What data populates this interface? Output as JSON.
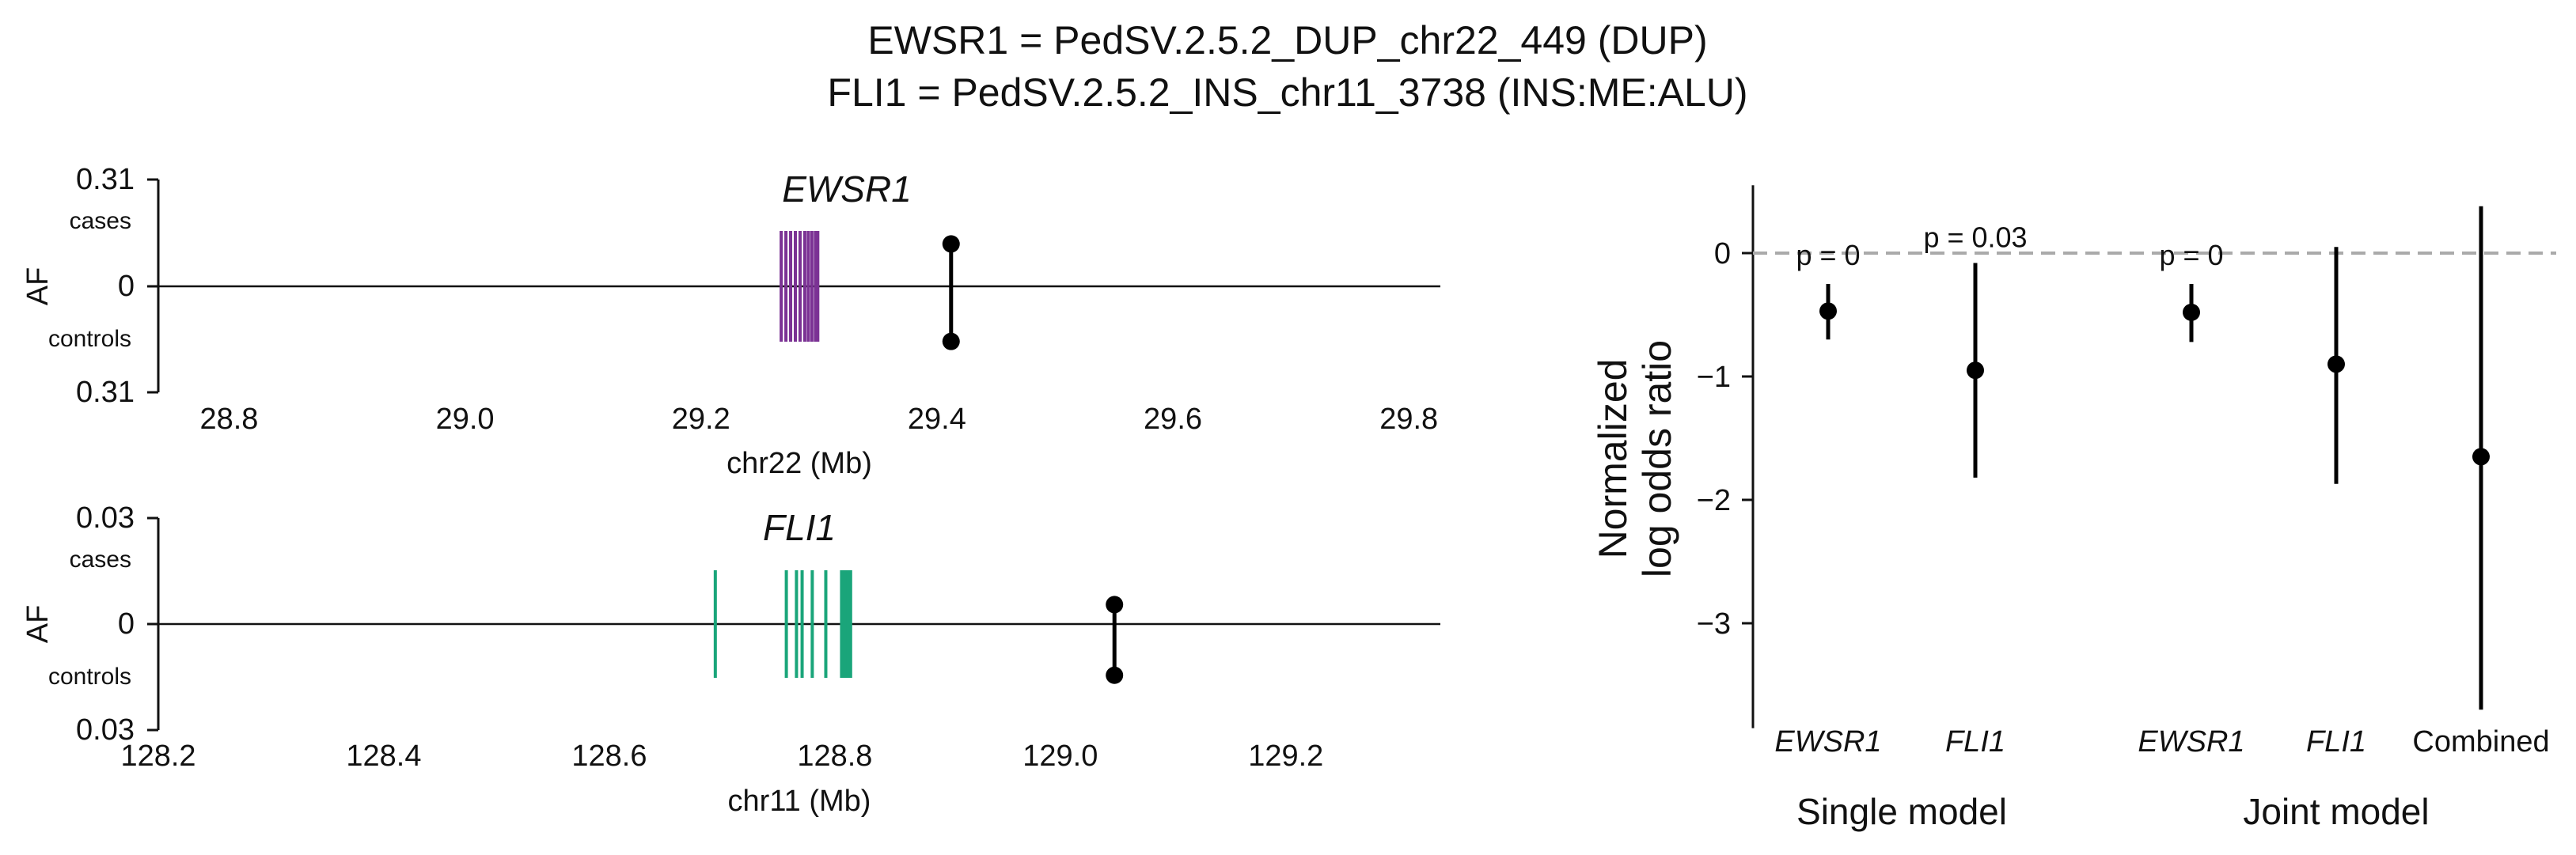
{
  "title_line1": "EWSR1 = PedSV.2.5.2_DUP_chr22_449 (DUP)",
  "title_line2": "FLI1 = PedSV.2.5.2_INS_chr11_3738 (INS:ME:ALU)",
  "colors": {
    "ewsr1_exon": "#7b3294",
    "fli1_exon": "#1aa57a",
    "points": "#000000",
    "reference_line": "#aaaaaa"
  },
  "chart_data": [
    {
      "type": "lollipop",
      "gene": "EWSR1",
      "ylabel": "AF",
      "xlabel": "chr22 (Mb)",
      "y_top_label": "cases",
      "y_bottom_label": "controls",
      "ymax_tick_label": "0.31",
      "ymin_tick_label": "0.31",
      "zero_tick_label": "0",
      "ylim": [
        -0.31,
        0.31
      ],
      "xlim": [
        28.74,
        29.82
      ],
      "x_ticks": [
        "28.8",
        "29.0",
        "29.2",
        "29.4",
        "29.6",
        "29.8"
      ],
      "exons_mb": [
        29.268,
        29.272,
        29.276,
        29.28,
        29.284,
        29.288,
        29.291,
        29.294,
        29.297,
        29.299
      ],
      "exon_color_key": "ewsr1_exon",
      "variant": {
        "position_mb": 29.412,
        "af_cases": 0.123,
        "af_controls": 0.16
      }
    },
    {
      "type": "lollipop",
      "gene": "FLI1",
      "ylabel": "AF",
      "xlabel": "chr11 (Mb)",
      "y_top_label": "cases",
      "y_bottom_label": "controls",
      "ymax_tick_label": "0.03",
      "ymin_tick_label": "0.03",
      "zero_tick_label": "0",
      "ylim": [
        -0.03,
        0.03
      ],
      "xlim": [
        128.2,
        129.33
      ],
      "x_ticks": [
        "128.2",
        "128.4",
        "128.6",
        "128.8",
        "129.0",
        "129.2"
      ],
      "exons_mb": [
        128.694,
        128.757,
        128.766,
        128.771,
        128.78,
        128.792,
        128.806,
        128.808,
        128.81,
        128.812,
        128.814
      ],
      "exon_color_key": "fli1_exon",
      "variant": {
        "position_mb": 129.048,
        "af_cases": 0.0055,
        "af_controls": 0.0145
      }
    },
    {
      "type": "forest",
      "ylabel": "Normalized log odds ratio",
      "ylabel_lines": [
        "Normalized",
        "log odds ratio"
      ],
      "ylim": [
        -3.85,
        0.55
      ],
      "y_ticks": [
        0,
        -1,
        -2,
        -3
      ],
      "y_tick_labels": [
        "0",
        "−1",
        "−2",
        "−3"
      ],
      "reference_line_y": 0,
      "points": [
        {
          "label": "EWSR1",
          "italic": true,
          "estimate": -0.47,
          "ci_low": -0.7,
          "ci_high": -0.25,
          "p_label": "p = 0"
        },
        {
          "label": "FLI1",
          "italic": true,
          "estimate": -0.95,
          "ci_low": -1.82,
          "ci_high": -0.08,
          "p_label": "p = 0.03"
        },
        {
          "label": "EWSR1",
          "italic": true,
          "estimate": -0.48,
          "ci_low": -0.72,
          "ci_high": -0.25,
          "p_label": "p = 0"
        },
        {
          "label": "FLI1",
          "italic": true,
          "estimate": -0.9,
          "ci_low": -1.87,
          "ci_high": 0.05,
          "p_label": ""
        },
        {
          "label": "Combined",
          "italic": false,
          "estimate": -1.65,
          "ci_low": -3.7,
          "ci_high": 0.38,
          "p_label": ""
        }
      ],
      "groups": [
        "Single model",
        "Joint model"
      ]
    }
  ]
}
